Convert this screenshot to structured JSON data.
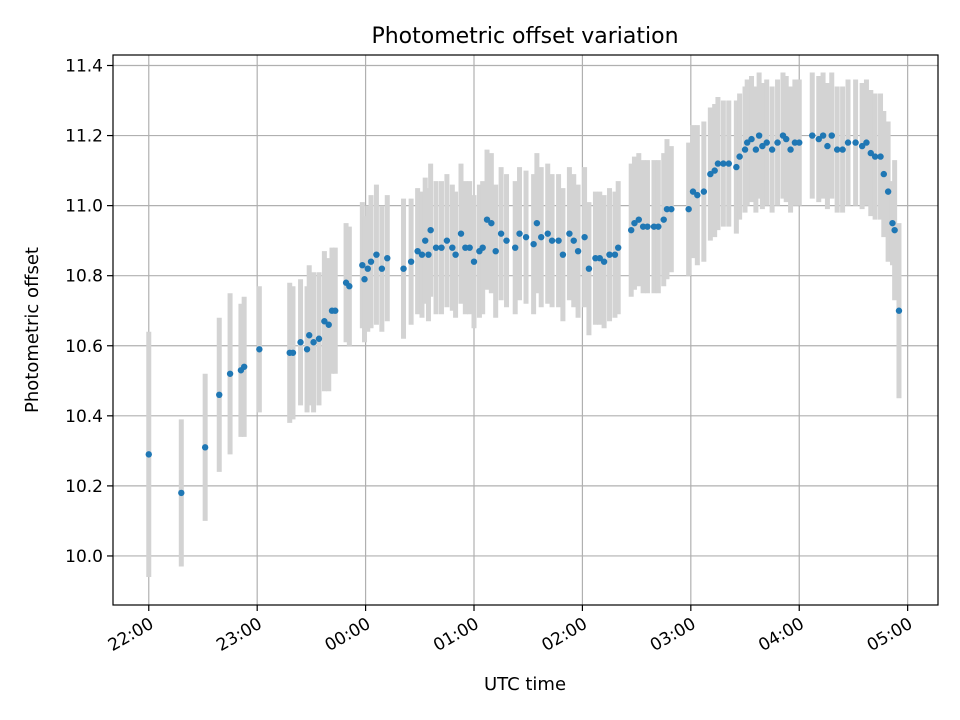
{
  "chart_data": {
    "type": "scatter",
    "title": "Photometric offset variation",
    "xlabel": "UTC time",
    "ylabel": "Photometric offset",
    "x_ticks": [
      "22:00",
      "23:00",
      "00:00",
      "01:00",
      "02:00",
      "03:00",
      "04:00",
      "05:00"
    ],
    "y_ticks": [
      "10.0",
      "10.2",
      "10.4",
      "10.6",
      "10.8",
      "11.0",
      "11.2",
      "11.4"
    ],
    "xlim": [
      "21:40",
      "05:17"
    ],
    "ylim": [
      9.86,
      11.43
    ],
    "grid": true,
    "x_values_unit": "hours after 22:00 UTC",
    "colors": {
      "points": "#1f77b4",
      "error_bars": "#d3d3d3",
      "grid": "#b0b0b0"
    },
    "points": [
      [
        0.0,
        10.29,
        0.35
      ],
      [
        0.3,
        10.18,
        0.21
      ],
      [
        0.52,
        10.31,
        0.21
      ],
      [
        0.65,
        10.46,
        0.22
      ],
      [
        0.75,
        10.52,
        0.23
      ],
      [
        0.85,
        10.53,
        0.19
      ],
      [
        0.88,
        10.54,
        0.2
      ],
      [
        1.02,
        10.59,
        0.18
      ],
      [
        1.3,
        10.58,
        0.2
      ],
      [
        1.33,
        10.58,
        0.19
      ],
      [
        1.4,
        10.61,
        0.18
      ],
      [
        1.46,
        10.59,
        0.18
      ],
      [
        1.48,
        10.63,
        0.2
      ],
      [
        1.52,
        10.61,
        0.2
      ],
      [
        1.57,
        10.62,
        0.19
      ],
      [
        1.62,
        10.67,
        0.2
      ],
      [
        1.66,
        10.66,
        0.19
      ],
      [
        1.69,
        10.7,
        0.18
      ],
      [
        1.72,
        10.7,
        0.18
      ],
      [
        1.82,
        10.78,
        0.17
      ],
      [
        1.85,
        10.77,
        0.17
      ],
      [
        1.97,
        10.83,
        0.18
      ],
      [
        1.99,
        10.79,
        0.18
      ],
      [
        2.02,
        10.82,
        0.18
      ],
      [
        2.05,
        10.84,
        0.19
      ],
      [
        2.1,
        10.86,
        0.2
      ],
      [
        2.15,
        10.82,
        0.18
      ],
      [
        2.2,
        10.85,
        0.18
      ],
      [
        2.35,
        10.82,
        0.2
      ],
      [
        2.42,
        10.84,
        0.18
      ],
      [
        2.48,
        10.87,
        0.18
      ],
      [
        2.52,
        10.86,
        0.18
      ],
      [
        2.55,
        10.9,
        0.18
      ],
      [
        2.58,
        10.86,
        0.19
      ],
      [
        2.6,
        10.93,
        0.19
      ],
      [
        2.65,
        10.88,
        0.19
      ],
      [
        2.7,
        10.88,
        0.19
      ],
      [
        2.75,
        10.9,
        0.19
      ],
      [
        2.8,
        10.88,
        0.18
      ],
      [
        2.83,
        10.86,
        0.18
      ],
      [
        2.88,
        10.92,
        0.2
      ],
      [
        2.92,
        10.88,
        0.19
      ],
      [
        2.96,
        10.88,
        0.19
      ],
      [
        3.0,
        10.84,
        0.19
      ],
      [
        3.05,
        10.87,
        0.19
      ],
      [
        3.08,
        10.88,
        0.19
      ],
      [
        3.12,
        10.96,
        0.2
      ],
      [
        3.16,
        10.95,
        0.2
      ],
      [
        3.2,
        10.87,
        0.19
      ],
      [
        3.25,
        10.92,
        0.19
      ],
      [
        3.3,
        10.9,
        0.19
      ],
      [
        3.38,
        10.88,
        0.19
      ],
      [
        3.42,
        10.92,
        0.19
      ],
      [
        3.48,
        10.91,
        0.19
      ],
      [
        3.55,
        10.89,
        0.2
      ],
      [
        3.58,
        10.95,
        0.2
      ],
      [
        3.62,
        10.91,
        0.2
      ],
      [
        3.68,
        10.92,
        0.2
      ],
      [
        3.72,
        10.9,
        0.19
      ],
      [
        3.78,
        10.9,
        0.19
      ],
      [
        3.82,
        10.86,
        0.19
      ],
      [
        3.88,
        10.92,
        0.19
      ],
      [
        3.92,
        10.9,
        0.19
      ],
      [
        3.96,
        10.87,
        0.19
      ],
      [
        4.02,
        10.91,
        0.2
      ],
      [
        4.06,
        10.82,
        0.19
      ],
      [
        4.12,
        10.85,
        0.19
      ],
      [
        4.16,
        10.85,
        0.19
      ],
      [
        4.2,
        10.84,
        0.19
      ],
      [
        4.25,
        10.86,
        0.19
      ],
      [
        4.3,
        10.86,
        0.18
      ],
      [
        4.33,
        10.88,
        0.19
      ],
      [
        4.45,
        10.93,
        0.19
      ],
      [
        4.48,
        10.95,
        0.19
      ],
      [
        4.52,
        10.96,
        0.19
      ],
      [
        4.56,
        10.94,
        0.19
      ],
      [
        4.6,
        10.94,
        0.19
      ],
      [
        4.66,
        10.94,
        0.19
      ],
      [
        4.7,
        10.94,
        0.19
      ],
      [
        4.75,
        10.96,
        0.19
      ],
      [
        4.78,
        10.99,
        0.2
      ],
      [
        4.82,
        10.99,
        0.18
      ],
      [
        4.98,
        10.99,
        0.19
      ],
      [
        5.02,
        11.04,
        0.19
      ],
      [
        5.06,
        11.03,
        0.2
      ],
      [
        5.12,
        11.04,
        0.2
      ],
      [
        5.18,
        11.09,
        0.19
      ],
      [
        5.22,
        11.1,
        0.19
      ],
      [
        5.25,
        11.12,
        0.19
      ],
      [
        5.3,
        11.12,
        0.18
      ],
      [
        5.35,
        11.12,
        0.18
      ],
      [
        5.42,
        11.11,
        0.19
      ],
      [
        5.45,
        11.14,
        0.18
      ],
      [
        5.5,
        11.16,
        0.18
      ],
      [
        5.52,
        11.18,
        0.18
      ],
      [
        5.56,
        11.19,
        0.18
      ],
      [
        5.6,
        11.16,
        0.18
      ],
      [
        5.63,
        11.2,
        0.18
      ],
      [
        5.66,
        11.17,
        0.18
      ],
      [
        5.7,
        11.18,
        0.18
      ],
      [
        5.75,
        11.16,
        0.18
      ],
      [
        5.8,
        11.18,
        0.18
      ],
      [
        5.85,
        11.2,
        0.18
      ],
      [
        5.88,
        11.19,
        0.18
      ],
      [
        5.92,
        11.16,
        0.18
      ],
      [
        5.96,
        11.18,
        0.18
      ],
      [
        6.0,
        11.18,
        0.18
      ],
      [
        6.12,
        11.2,
        0.18
      ],
      [
        6.18,
        11.19,
        0.18
      ],
      [
        6.22,
        11.2,
        0.18
      ],
      [
        6.26,
        11.17,
        0.18
      ],
      [
        6.3,
        11.2,
        0.18
      ],
      [
        6.35,
        11.16,
        0.18
      ],
      [
        6.4,
        11.16,
        0.18
      ],
      [
        6.45,
        11.18,
        0.18
      ],
      [
        6.52,
        11.18,
        0.18
      ],
      [
        6.58,
        11.17,
        0.18
      ],
      [
        6.62,
        11.18,
        0.18
      ],
      [
        6.66,
        11.15,
        0.18
      ],
      [
        6.7,
        11.14,
        0.18
      ],
      [
        6.75,
        11.14,
        0.18
      ],
      [
        6.78,
        11.09,
        0.18
      ],
      [
        6.82,
        11.04,
        0.2
      ],
      [
        6.86,
        10.95,
        0.12
      ],
      [
        6.88,
        10.93,
        0.2
      ],
      [
        6.92,
        10.7,
        0.25
      ]
    ]
  }
}
